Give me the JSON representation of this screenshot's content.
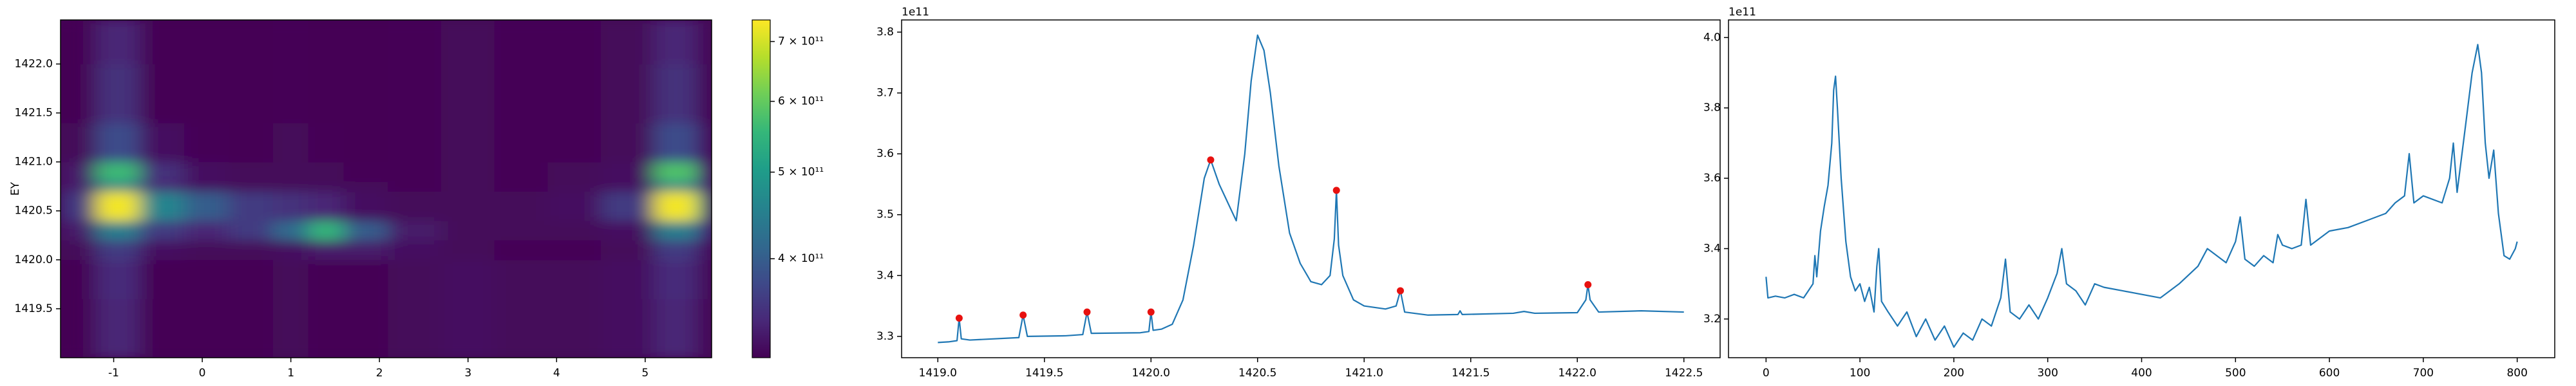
{
  "chart_data": [
    {
      "type": "heatmap",
      "ylabel": "EY",
      "xedges": [
        -1.6,
        -1.2,
        -0.7,
        -0.2,
        0.3,
        0.8,
        1.2,
        1.6,
        2.1,
        2.7,
        3.3,
        3.9,
        4.5,
        5.1,
        5.6,
        5.75
      ],
      "yedges": [
        1419.0,
        1419.6,
        1420.0,
        1420.2,
        1420.4,
        1420.7,
        1420.8,
        1421.0,
        1421.4,
        1422.0,
        1422.45
      ],
      "z": [
        [
          310000000000.0,
          340000000000.0,
          310000000000.0,
          310000000000.0,
          310000000000.0,
          315000000000.0,
          310000000000.0,
          310000000000.0,
          315000000000.0,
          320000000000.0,
          315000000000.0,
          315000000000.0,
          320000000000.0,
          340000000000.0,
          310000000000.0
        ],
        [
          310000000000.0,
          345000000000.0,
          310000000000.0,
          310000000000.0,
          310000000000.0,
          315000000000.0,
          310000000000.0,
          310000000000.0,
          315000000000.0,
          320000000000.0,
          315000000000.0,
          315000000000.0,
          320000000000.0,
          345000000000.0,
          315000000000.0
        ],
        [
          315000000000.0,
          360000000000.0,
          320000000000.0,
          315000000000.0,
          315000000000.0,
          320000000000.0,
          330000000000.0,
          330000000000.0,
          320000000000.0,
          315000000000.0,
          312000000000.0,
          312000000000.0,
          315000000000.0,
          360000000000.0,
          320000000000.0
        ],
        [
          330000000000.0,
          450000000000.0,
          360000000000.0,
          340000000000.0,
          360000000000.0,
          420000000000.0,
          550000000000.0,
          400000000000.0,
          330000000000.0,
          315000000000.0,
          315000000000.0,
          315000000000.0,
          320000000000.0,
          450000000000.0,
          360000000000.0
        ],
        [
          360000000000.0,
          730000000000.0,
          460000000000.0,
          400000000000.0,
          360000000000.0,
          350000000000.0,
          340000000000.0,
          320000000000.0,
          315000000000.0,
          315000000000.0,
          315000000000.0,
          320000000000.0,
          360000000000.0,
          730000000000.0,
          500000000000.0
        ],
        [
          330000000000.0,
          450000000000.0,
          340000000000.0,
          320000000000.0,
          315000000000.0,
          315000000000.0,
          315000000000.0,
          315000000000.0,
          312000000000.0,
          315000000000.0,
          312000000000.0,
          315000000000.0,
          320000000000.0,
          450000000000.0,
          340000000000.0
        ],
        [
          330000000000.0,
          560000000000.0,
          350000000000.0,
          320000000000.0,
          315000000000.0,
          315000000000.0,
          315000000000.0,
          312000000000.0,
          312000000000.0,
          315000000000.0,
          312000000000.0,
          315000000000.0,
          320000000000.0,
          580000000000.0,
          340000000000.0
        ],
        [
          315000000000.0,
          380000000000.0,
          320000000000.0,
          312000000000.0,
          310000000000.0,
          315000000000.0,
          312000000000.0,
          310000000000.0,
          312000000000.0,
          315000000000.0,
          312000000000.0,
          312000000000.0,
          315000000000.0,
          380000000000.0,
          320000000000.0
        ],
        [
          310000000000.0,
          350000000000.0,
          310000000000.0,
          310000000000.0,
          310000000000.0,
          312000000000.0,
          310000000000.0,
          310000000000.0,
          312000000000.0,
          315000000000.0,
          312000000000.0,
          312000000000.0,
          315000000000.0,
          350000000000.0,
          310000000000.0
        ],
        [
          310000000000.0,
          340000000000.0,
          310000000000.0,
          310000000000.0,
          310000000000.0,
          312000000000.0,
          310000000000.0,
          310000000000.0,
          312000000000.0,
          315000000000.0,
          312000000000.0,
          312000000000.0,
          315000000000.0,
          340000000000.0,
          310000000000.0
        ]
      ],
      "xlim": [
        -1.6,
        5.75
      ],
      "xticks": [
        -1,
        0,
        1,
        2,
        3,
        4,
        5
      ],
      "ylim": [
        1419.0,
        1422.45
      ],
      "yticks": [
        1419.5,
        {
          "value": 1420,
          "label": "1420.0"
        },
        1420.5,
        {
          "value": 1421,
          "label": "1421.0"
        },
        1421.5,
        {
          "value": 1422,
          "label": "1422.0"
        }
      ],
      "colorbar": {
        "log": true,
        "lim": [
          310000000000.0,
          740000000000.0
        ],
        "ticks": [
          {
            "value": 400000000000.0,
            "label": "4 × 10¹¹"
          },
          {
            "value": 500000000000.0,
            "label": "5 × 10¹¹"
          },
          {
            "value": 600000000000.0,
            "label": "6 × 10¹¹"
          },
          {
            "value": 700000000000.0,
            "label": "7 × 10¹¹"
          }
        ]
      }
    },
    {
      "type": "line",
      "offset_text": "1e11",
      "x": [
        1419.0,
        1419.05,
        1419.09,
        1419.1,
        1419.11,
        1419.15,
        1419.38,
        1419.4,
        1419.42,
        1419.6,
        1419.68,
        1419.7,
        1419.72,
        1419.95,
        1419.99,
        1420.0,
        1420.01,
        1420.05,
        1420.1,
        1420.15,
        1420.2,
        1420.25,
        1420.28,
        1420.32,
        1420.36,
        1420.4,
        1420.44,
        1420.47,
        1420.5,
        1420.53,
        1420.56,
        1420.6,
        1420.65,
        1420.7,
        1420.75,
        1420.8,
        1420.84,
        1420.86,
        1420.87,
        1420.88,
        1420.9,
        1420.95,
        1421.0,
        1421.1,
        1421.15,
        1421.17,
        1421.19,
        1421.3,
        1421.44,
        1421.45,
        1421.46,
        1421.7,
        1421.75,
        1421.8,
        1422.0,
        1422.04,
        1422.05,
        1422.06,
        1422.1,
        1422.3,
        1422.5
      ],
      "series": [
        {
          "color": "#1f77b4",
          "values": [
            3.29,
            3.291,
            3.293,
            3.33,
            3.296,
            3.294,
            3.298,
            3.335,
            3.3,
            3.301,
            3.303,
            3.34,
            3.305,
            3.306,
            3.308,
            3.34,
            3.31,
            3.312,
            3.32,
            3.36,
            3.45,
            3.56,
            3.59,
            3.55,
            3.52,
            3.49,
            3.6,
            3.72,
            3.795,
            3.77,
            3.7,
            3.58,
            3.47,
            3.42,
            3.39,
            3.385,
            3.4,
            3.46,
            3.54,
            3.45,
            3.4,
            3.36,
            3.35,
            3.345,
            3.35,
            3.375,
            3.34,
            3.335,
            3.336,
            3.342,
            3.336,
            3.338,
            3.341,
            3.338,
            3.339,
            3.36,
            3.385,
            3.36,
            3.34,
            3.342,
            3.34
          ]
        }
      ],
      "markers": {
        "color": "#e8110f",
        "x": [
          1419.1,
          1419.4,
          1419.7,
          1420.0,
          1420.28,
          1420.87,
          1421.17,
          1422.05
        ],
        "values": [
          3.33,
          3.335,
          3.34,
          3.34,
          3.59,
          3.54,
          3.375,
          3.385
        ]
      },
      "xlim": [
        1418.83,
        1422.67
      ],
      "xticks": [
        {
          "value": 1419,
          "label": "1419.0"
        },
        1419.5,
        {
          "value": 1420,
          "label": "1420.0"
        },
        1420.5,
        {
          "value": 1421,
          "label": "1421.0"
        },
        1421.5,
        {
          "value": 1422,
          "label": "1422.0"
        },
        1422.5
      ],
      "ylim": [
        3.265,
        3.82
      ],
      "yticks": [
        3.3,
        3.4,
        3.5,
        3.6,
        3.7,
        3.8
      ]
    },
    {
      "type": "line",
      "offset_text": "1e11",
      "x": [
        0,
        2,
        10,
        20,
        30,
        40,
        45,
        50,
        52,
        54,
        58,
        62,
        66,
        70,
        72,
        74,
        76,
        80,
        85,
        90,
        95,
        100,
        105,
        110,
        115,
        118,
        120,
        123,
        130,
        140,
        150,
        160,
        170,
        180,
        190,
        200,
        210,
        220,
        230,
        240,
        250,
        255,
        260,
        270,
        280,
        290,
        300,
        310,
        315,
        320,
        330,
        340,
        350,
        360,
        380,
        400,
        420,
        440,
        460,
        470,
        480,
        490,
        500,
        505,
        510,
        520,
        530,
        540,
        545,
        550,
        560,
        570,
        575,
        580,
        600,
        620,
        640,
        660,
        670,
        680,
        685,
        690,
        700,
        720,
        728,
        732,
        736,
        745,
        752,
        758,
        762,
        766,
        770,
        775,
        780,
        786,
        792,
        798,
        800
      ],
      "series": [
        {
          "color": "#1f77b4",
          "values": [
            3.32,
            3.26,
            3.265,
            3.26,
            3.27,
            3.26,
            3.28,
            3.3,
            3.38,
            3.32,
            3.45,
            3.52,
            3.58,
            3.7,
            3.85,
            3.89,
            3.8,
            3.6,
            3.42,
            3.32,
            3.28,
            3.3,
            3.25,
            3.29,
            3.22,
            3.35,
            3.4,
            3.25,
            3.22,
            3.18,
            3.22,
            3.15,
            3.2,
            3.14,
            3.18,
            3.12,
            3.16,
            3.14,
            3.2,
            3.18,
            3.26,
            3.37,
            3.22,
            3.2,
            3.24,
            3.2,
            3.26,
            3.33,
            3.4,
            3.3,
            3.28,
            3.24,
            3.3,
            3.29,
            3.28,
            3.27,
            3.26,
            3.3,
            3.35,
            3.4,
            3.38,
            3.36,
            3.42,
            3.49,
            3.37,
            3.35,
            3.38,
            3.36,
            3.44,
            3.41,
            3.4,
            3.41,
            3.54,
            3.41,
            3.45,
            3.46,
            3.48,
            3.5,
            3.53,
            3.55,
            3.67,
            3.53,
            3.55,
            3.53,
            3.6,
            3.7,
            3.56,
            3.75,
            3.9,
            3.98,
            3.9,
            3.7,
            3.6,
            3.68,
            3.5,
            3.38,
            3.37,
            3.4,
            3.42
          ]
        }
      ],
      "xlim": [
        -40,
        840
      ],
      "xticks": [
        0,
        100,
        200,
        300,
        400,
        500,
        600,
        700,
        800
      ],
      "ylim": [
        3.09,
        4.05
      ],
      "yticks": [
        3.2,
        3.4,
        3.6,
        3.8,
        {
          "value": 4,
          "label": "4.0"
        }
      ]
    }
  ]
}
